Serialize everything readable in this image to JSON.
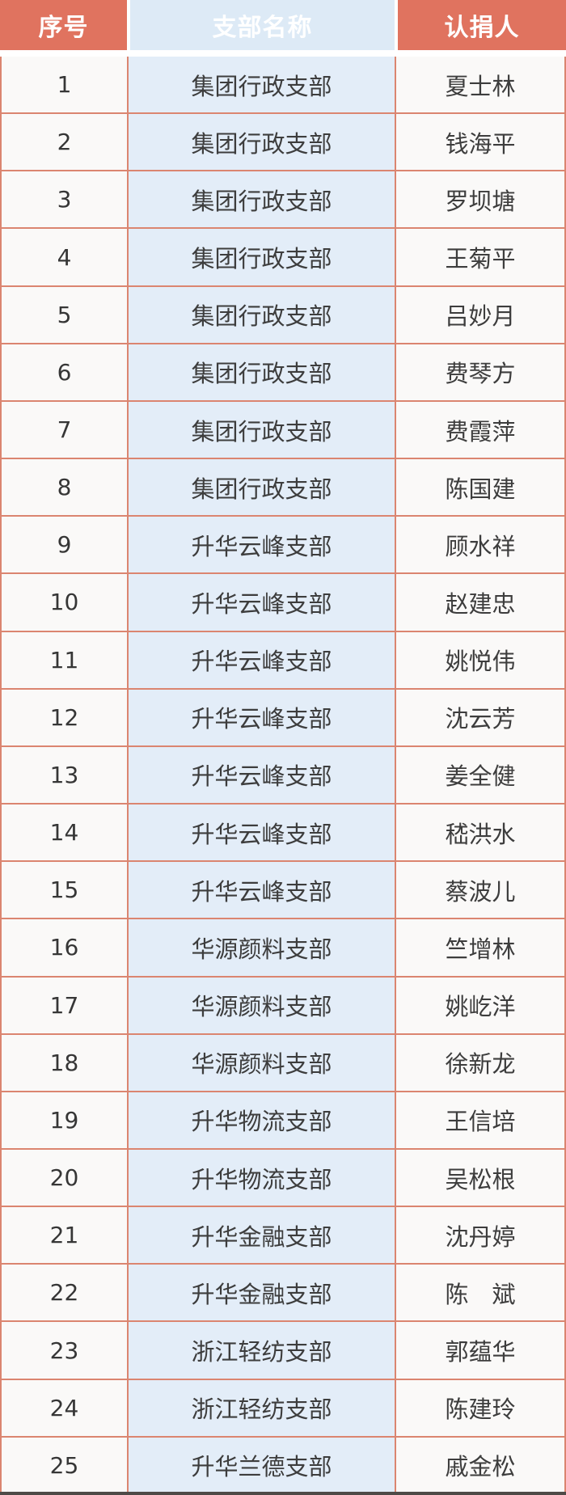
{
  "table": {
    "header": {
      "index": "序号",
      "branch": "支部名称",
      "donor": "认捐人"
    },
    "rows": [
      {
        "index": "1",
        "branch": "集团行政支部",
        "donor": "夏士林"
      },
      {
        "index": "2",
        "branch": "集团行政支部",
        "donor": "钱海平"
      },
      {
        "index": "3",
        "branch": "集团行政支部",
        "donor": "罗坝塘"
      },
      {
        "index": "4",
        "branch": "集团行政支部",
        "donor": "王菊平"
      },
      {
        "index": "5",
        "branch": "集团行政支部",
        "donor": "吕妙月"
      },
      {
        "index": "6",
        "branch": "集团行政支部",
        "donor": "费琴方"
      },
      {
        "index": "7",
        "branch": "集团行政支部",
        "donor": "费霞萍"
      },
      {
        "index": "8",
        "branch": "集团行政支部",
        "donor": "陈国建"
      },
      {
        "index": "9",
        "branch": "升华云峰支部",
        "donor": "顾水祥"
      },
      {
        "index": "10",
        "branch": "升华云峰支部",
        "donor": "赵建忠"
      },
      {
        "index": "11",
        "branch": "升华云峰支部",
        "donor": "姚悦伟"
      },
      {
        "index": "12",
        "branch": "升华云峰支部",
        "donor": "沈云芳"
      },
      {
        "index": "13",
        "branch": "升华云峰支部",
        "donor": "姜全健"
      },
      {
        "index": "14",
        "branch": "升华云峰支部",
        "donor": "嵇洪水"
      },
      {
        "index": "15",
        "branch": "升华云峰支部",
        "donor": "蔡波儿"
      },
      {
        "index": "16",
        "branch": "华源颜料支部",
        "donor": "竺增林"
      },
      {
        "index": "17",
        "branch": "华源颜料支部",
        "donor": "姚屹洋"
      },
      {
        "index": "18",
        "branch": "华源颜料支部",
        "donor": "徐新龙"
      },
      {
        "index": "19",
        "branch": "升华物流支部",
        "donor": "王信培"
      },
      {
        "index": "20",
        "branch": "升华物流支部",
        "donor": "吴松根"
      },
      {
        "index": "21",
        "branch": "升华金融支部",
        "donor": "沈丹婷"
      },
      {
        "index": "22",
        "branch": "升华金融支部",
        "donor": "陈　斌"
      },
      {
        "index": "23",
        "branch": "浙江轻纺支部",
        "donor": "郭蕴华"
      },
      {
        "index": "24",
        "branch": "浙江轻纺支部",
        "donor": "陈建玲"
      },
      {
        "index": "25",
        "branch": "升华兰德支部",
        "donor": "戚金松"
      }
    ]
  },
  "colors": {
    "header_bg": "#e0735f",
    "header_text": "#ffffff",
    "branch_header_bg": "#ddeaf6",
    "branch_col_bg": "#e3edf8",
    "cell_bg": "#faf9f8",
    "grid_border": "#db8570",
    "body_text": "#3d3d3d",
    "bottom_edge": "#4e4a47"
  }
}
